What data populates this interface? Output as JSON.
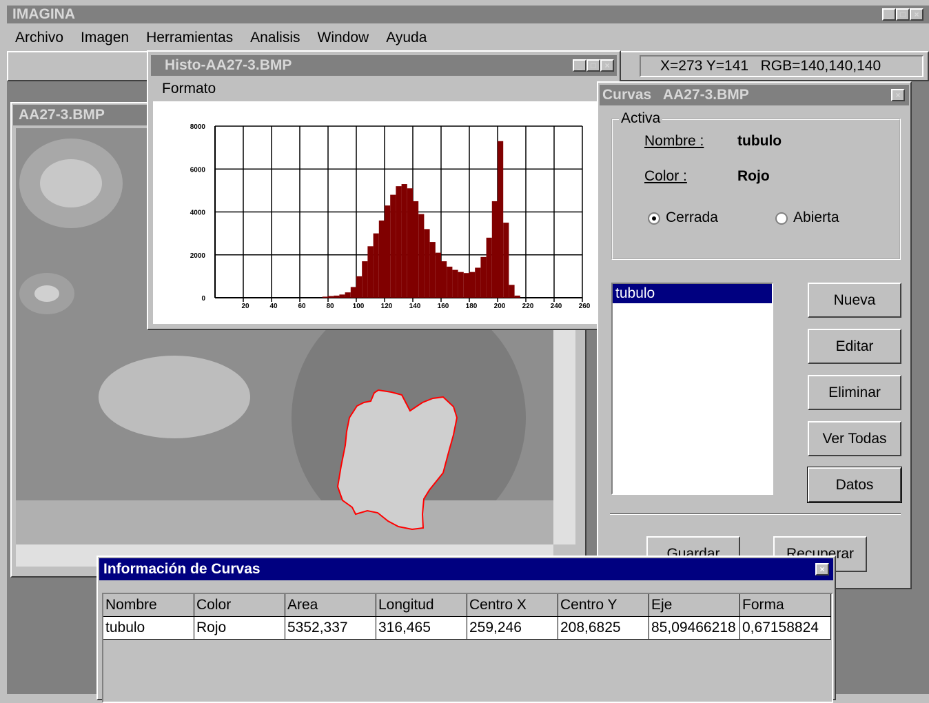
{
  "app": {
    "title": "IMAGINA",
    "menu": [
      "Archivo",
      "Imagen",
      "Herramientas",
      "Analisis",
      "Window",
      "Ayuda"
    ]
  },
  "status": "X=273 Y=141   RGB=140,140,140",
  "image_window": {
    "title": "AA27-3.BMP"
  },
  "histogram_window": {
    "title": "Histo-AA27-3.BMP",
    "menu": "Formato",
    "chart_data": {
      "type": "histogram",
      "color": "#800000",
      "grid": true,
      "bins": [
        76,
        80,
        84,
        88,
        92,
        96,
        100,
        104,
        108,
        112,
        116,
        120,
        124,
        128,
        132,
        136,
        140,
        144,
        148,
        152,
        156,
        160,
        164,
        168,
        172,
        176,
        180,
        184,
        188,
        192,
        196,
        200,
        204,
        208,
        212,
        216
      ],
      "values": [
        50,
        80,
        100,
        150,
        250,
        500,
        1000,
        1700,
        2400,
        3000,
        3600,
        4300,
        4800,
        5200,
        5300,
        5100,
        4500,
        3900,
        3200,
        2600,
        2100,
        1700,
        1450,
        1300,
        1200,
        1150,
        1200,
        1400,
        1900,
        2800,
        4500,
        7300,
        3500,
        600,
        100
      ],
      "xlim": [
        0,
        260
      ],
      "ylim": [
        0,
        8000
      ],
      "xticks": [
        20,
        40,
        60,
        80,
        100,
        120,
        140,
        160,
        180,
        200,
        220,
        240,
        260
      ],
      "yticks": [
        0,
        2000,
        4000,
        6000,
        8000
      ]
    }
  },
  "curves_window": {
    "title": "Curvas   AA27-3.BMP",
    "group": "Activa",
    "name_label": "Nombre :",
    "name": "tubulo",
    "color_label": "Color :",
    "color": "Rojo",
    "options": [
      "Cerrada",
      "Abierta"
    ],
    "list": [
      "tubulo"
    ],
    "buttons": [
      "Nueva",
      "Editar",
      "Eliminar",
      "Ver Todas",
      "Datos"
    ],
    "bottom_buttons": [
      "Guardar",
      "Recuperar"
    ]
  },
  "info_window": {
    "title": "Información de Curvas",
    "table": {
      "columns": [
        "Nombre",
        "Color",
        "Area",
        "Longitud",
        "Centro X",
        "Centro Y",
        "Eje",
        "Forma"
      ],
      "rows": [
        [
          "tubulo",
          "Rojo",
          "5352,337",
          "316,465",
          "259,246",
          "208,6825",
          "85,09466218",
          "0,67158824"
        ]
      ]
    }
  }
}
